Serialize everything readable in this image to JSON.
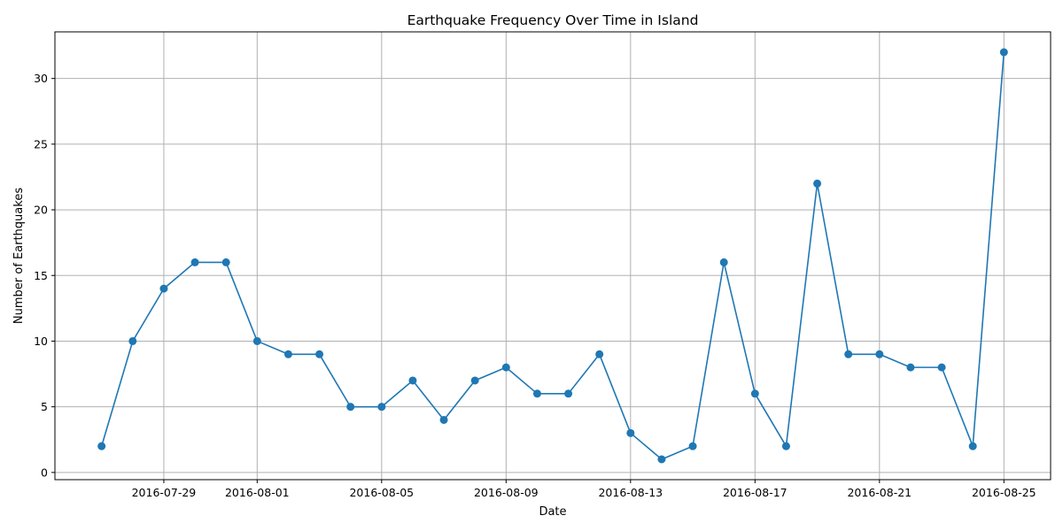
{
  "chart_data": {
    "type": "line",
    "title": "Earthquake Frequency Over Time in Island",
    "xlabel": "Date",
    "ylabel": "Number of Earthquakes",
    "x_tick_labels": [
      "2016-07-29",
      "2016-08-01",
      "2016-08-05",
      "2016-08-09",
      "2016-08-13",
      "2016-08-17",
      "2016-08-21",
      "2016-08-25"
    ],
    "y_tick_labels": [
      "0",
      "5",
      "10",
      "15",
      "20",
      "25",
      "30"
    ],
    "ylim": [
      -0.55,
      33.55
    ],
    "xlim": [
      "2016-07-25T12:00",
      "2016-08-26T12:00"
    ],
    "grid": true,
    "color": "#1f77b4",
    "marker": "circle",
    "series": [
      {
        "x": [
          "2016-07-27",
          "2016-07-28",
          "2016-07-29",
          "2016-07-30",
          "2016-07-31",
          "2016-08-01",
          "2016-08-02",
          "2016-08-03",
          "2016-08-04",
          "2016-08-05",
          "2016-08-06",
          "2016-08-07",
          "2016-08-08",
          "2016-08-09",
          "2016-08-10",
          "2016-08-11",
          "2016-08-12",
          "2016-08-13",
          "2016-08-14",
          "2016-08-15",
          "2016-08-16",
          "2016-08-17",
          "2016-08-18",
          "2016-08-19",
          "2016-08-20",
          "2016-08-21",
          "2016-08-22",
          "2016-08-23",
          "2016-08-24",
          "2016-08-25"
        ],
        "values": [
          2,
          10,
          14,
          16,
          16,
          10,
          9,
          9,
          5,
          5,
          7,
          4,
          7,
          8,
          6,
          6,
          9,
          3,
          1,
          2,
          16,
          6,
          2,
          22,
          9,
          9,
          8,
          8,
          2,
          32
        ]
      }
    ]
  }
}
